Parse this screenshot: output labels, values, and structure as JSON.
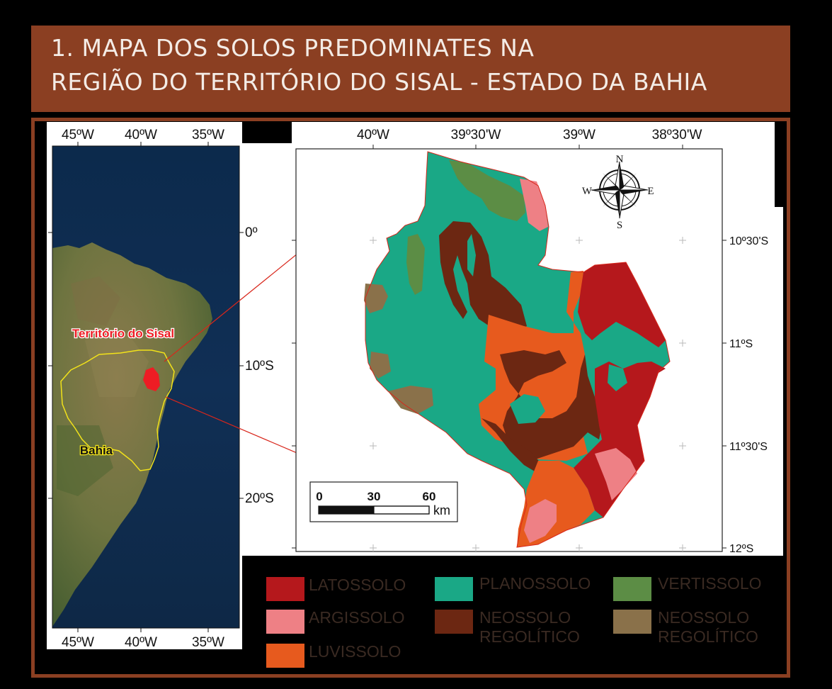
{
  "header": {
    "line1": "1. MAPA DOS SOLOS PREDOMINATES NA",
    "line2": "REGIÃO DO TERRITÓRIO DO SISAL - ESTADO DA BAHIA"
  },
  "overview_map": {
    "top_ticks": [
      "45ºW",
      "40ºW",
      "35ºW"
    ],
    "bottom_ticks": [
      "45ºW",
      "40ºW",
      "35ºW"
    ],
    "right_ticks": [
      "0º",
      "10ºS",
      "20ºS"
    ],
    "labels": {
      "territory": "Território do Sisal",
      "state": "Bahia"
    }
  },
  "detail_map": {
    "top_ticks": [
      "40ºW",
      "39º30'W",
      "39ºW",
      "38º30'W"
    ],
    "right_ticks": [
      "10º30'S",
      "11ºS",
      "11º30'S",
      "12ºS"
    ],
    "compass": {
      "n": "N",
      "s": "S",
      "e": "E",
      "w": "W"
    },
    "scale_bar": {
      "labels": [
        "0",
        "30",
        "60"
      ],
      "unit": "km"
    }
  },
  "legend": [
    {
      "label": "LATOSSOLO",
      "color": "#b5181c"
    },
    {
      "label": "ARGISSOLO",
      "color": "#ee8085"
    },
    {
      "label": "LUVISSOLO",
      "color": "#e75a1e"
    },
    {
      "label": "PLANOSSOLO",
      "color": "#1aa886"
    },
    {
      "label": "NEOSSOLO\nREGOLÍTICO",
      "color": "#6c2712"
    },
    {
      "label": "VERTISSOLO",
      "color": "#5c8d45"
    },
    {
      "label": "NEOSSOLO\nREGOLÍTICO",
      "color": "#8a714a"
    }
  ]
}
